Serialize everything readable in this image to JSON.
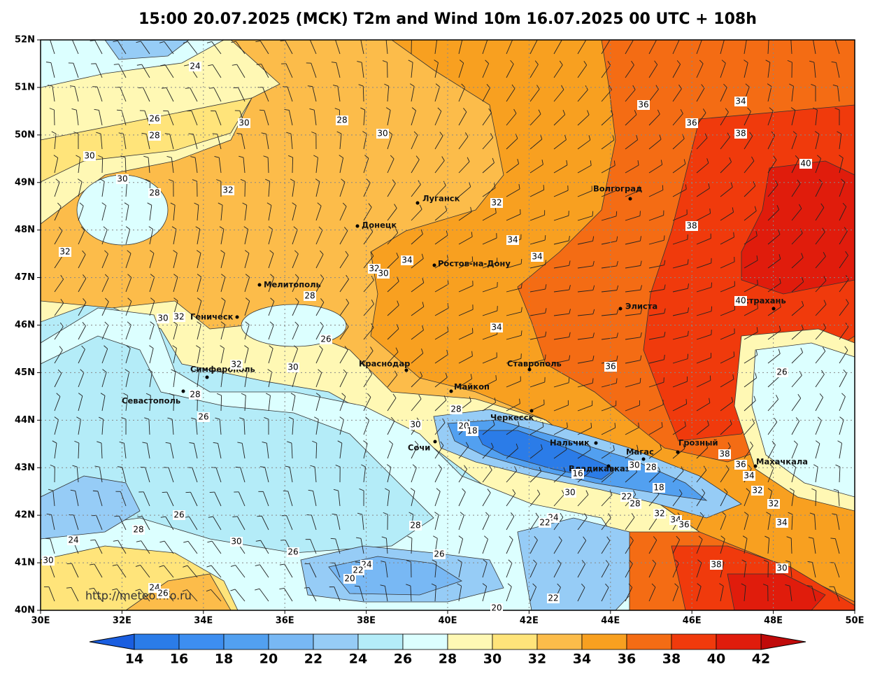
{
  "title": "15:00 20.07.2025 (MCK) T2m and Wind 10m 16.07.2025 00 UTC + 108h",
  "map": {
    "lon_ticks": [
      {
        "value": 30,
        "label": "30E"
      },
      {
        "value": 32,
        "label": "32E"
      },
      {
        "value": 34,
        "label": "34E"
      },
      {
        "value": 36,
        "label": "36E"
      },
      {
        "value": 38,
        "label": "38E"
      },
      {
        "value": 40,
        "label": "40E"
      },
      {
        "value": 42,
        "label": "42E"
      },
      {
        "value": 44,
        "label": "44E"
      },
      {
        "value": 46,
        "label": "46E"
      },
      {
        "value": 48,
        "label": "48E"
      },
      {
        "value": 50,
        "label": "50E"
      }
    ],
    "lat_ticks": [
      {
        "value": 52,
        "label": "52N"
      },
      {
        "value": 51,
        "label": "51N"
      },
      {
        "value": 50,
        "label": "50N"
      },
      {
        "value": 49,
        "label": "49N"
      },
      {
        "value": 48,
        "label": "48N"
      },
      {
        "value": 47,
        "label": "47N"
      },
      {
        "value": 46,
        "label": "46N"
      },
      {
        "value": 45,
        "label": "45N"
      },
      {
        "value": 44,
        "label": "44N"
      },
      {
        "value": 43,
        "label": "43N"
      },
      {
        "value": 42,
        "label": "42N"
      },
      {
        "value": 41,
        "label": "41N"
      },
      {
        "value": 40,
        "label": "40N"
      }
    ],
    "grid": true,
    "cities": [
      "Луганск",
      "Донецк",
      "Волгоград",
      "Ростов-на-Дону",
      "Мелитополь",
      "Элиста",
      "Астрахань",
      "Геническ",
      "Симферополь",
      "Краснодар",
      "Ставрополь",
      "Майкоп",
      "Севастополь",
      "Черкесск",
      "Сочи",
      "Нальчик",
      "Магас",
      "Грозный",
      "Владикавказ",
      "Махачкала"
    ],
    "contour_labels": [
      24,
      26,
      28,
      30,
      28,
      30,
      30,
      30,
      28,
      32,
      32,
      32,
      34,
      34,
      36,
      36,
      34,
      38,
      40,
      38,
      40,
      34,
      32,
      30,
      28,
      30,
      32,
      26,
      34,
      36,
      32,
      30,
      28,
      26,
      26,
      28,
      30,
      20,
      18,
      38,
      36,
      34,
      32,
      32,
      34,
      30,
      28,
      16,
      18,
      30,
      22,
      28,
      32,
      34,
      36,
      24,
      22,
      28,
      26,
      28,
      24,
      30,
      26,
      26,
      30,
      24,
      22,
      20,
      38,
      30,
      24,
      26,
      22,
      20
    ],
    "watermark": "http://meteoinfo.ru"
  },
  "colorbar": {
    "ticks": [
      14,
      16,
      18,
      20,
      22,
      24,
      26,
      28,
      30,
      32,
      34,
      36,
      38,
      40,
      42
    ],
    "colors": [
      "#1a5ee0",
      "#2b7ce8",
      "#3d8ef0",
      "#52a0f0",
      "#78b8f4",
      "#96ccf6",
      "#b4ecf8",
      "#dcffff",
      "#fff8b4",
      "#ffe47a",
      "#fcbc4a",
      "#f8a020",
      "#f46c14",
      "#f03a0c",
      "#e01c0c",
      "#c00a0a"
    ]
  }
}
